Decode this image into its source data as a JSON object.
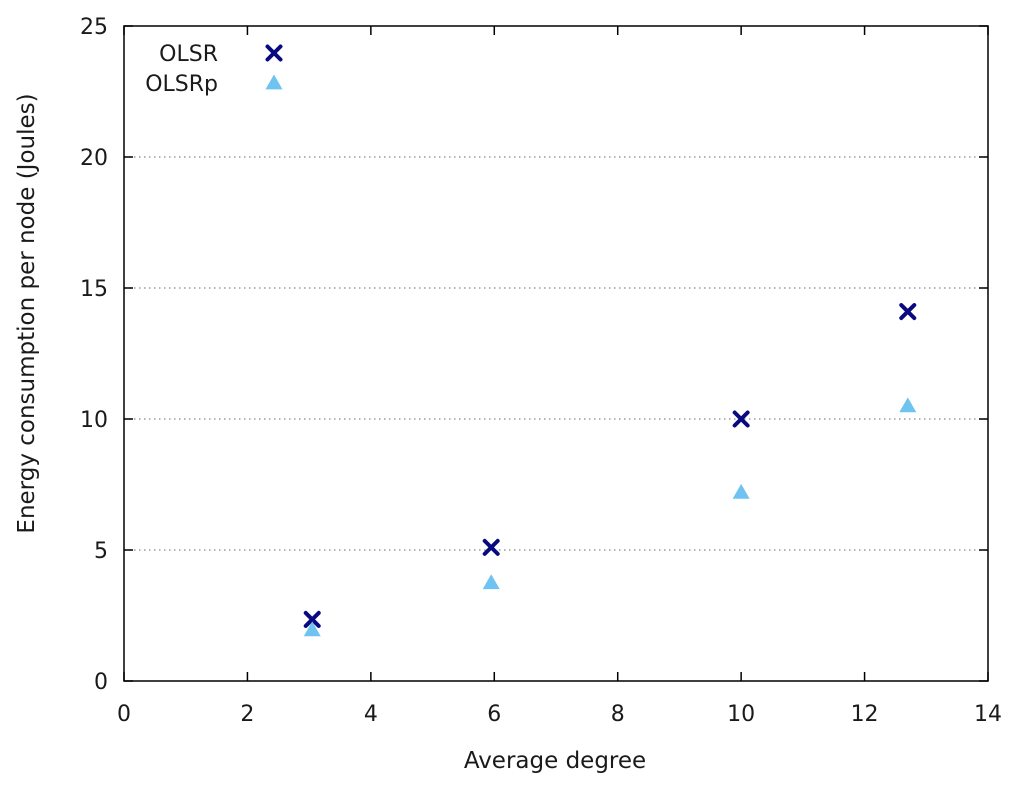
{
  "chart_data": {
    "type": "scatter",
    "title": "",
    "xlabel": "Average degree",
    "ylabel": "Energy consumption per node (Joules)",
    "xlim": [
      0,
      14
    ],
    "ylim": [
      0,
      25
    ],
    "xticks": [
      0,
      2,
      4,
      6,
      8,
      10,
      12,
      14
    ],
    "yticks": [
      0,
      5,
      10,
      15,
      20,
      25
    ],
    "grid": "horizontal-dotted",
    "legend_position": "top-left",
    "series": [
      {
        "name": "OLSR",
        "marker": "x",
        "color": "#0a0a80",
        "points": [
          {
            "x": 3.05,
            "y": 2.35
          },
          {
            "x": 5.95,
            "y": 5.1
          },
          {
            "x": 10.0,
            "y": 10.0
          },
          {
            "x": 12.7,
            "y": 14.1
          }
        ]
      },
      {
        "name": "OLSRp",
        "marker": "triangle",
        "color": "#6fc3f0",
        "points": [
          {
            "x": 3.05,
            "y": 1.95
          },
          {
            "x": 5.95,
            "y": 3.75
          },
          {
            "x": 10.0,
            "y": 7.2
          },
          {
            "x": 12.7,
            "y": 10.5
          }
        ]
      }
    ]
  }
}
